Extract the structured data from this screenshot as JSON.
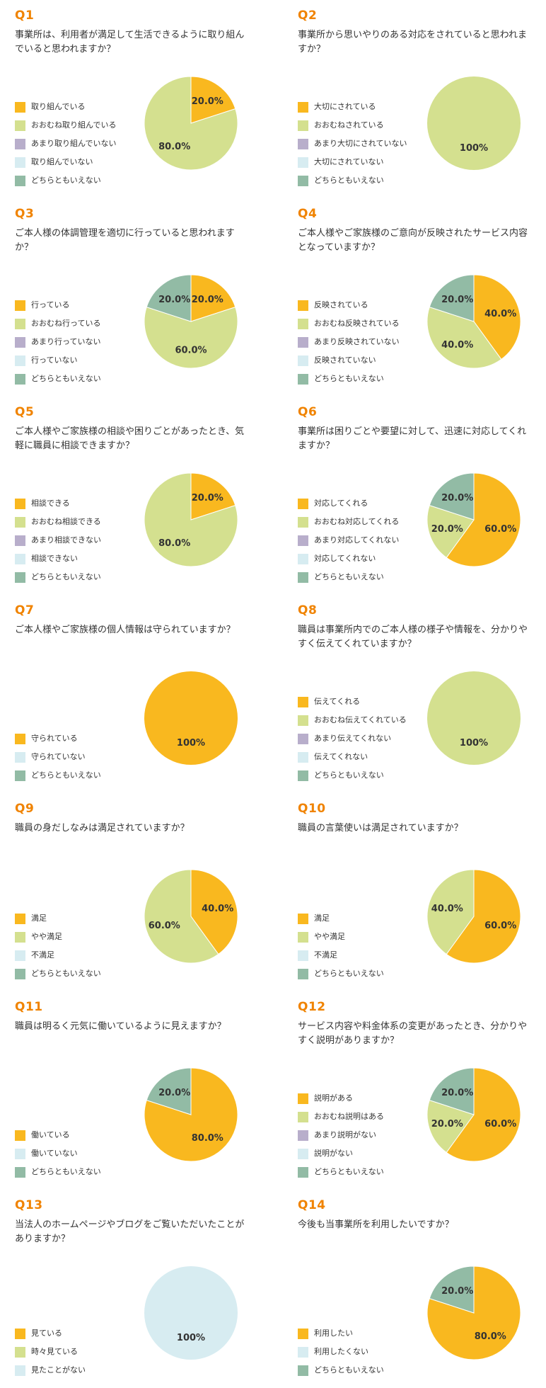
{
  "colors": {
    "orange": "#f9b81f",
    "lightgreen": "#d4e08f",
    "lavender": "#b8aecb",
    "lightblue": "#d7ecf1",
    "teal": "#92bba5"
  },
  "chart_data": [
    {
      "type": "pie",
      "qnum": "Q1",
      "title": "事業所は、利用者が満足して生活できるように取り組んでいると思われますか？",
      "categories": [
        "取り組んでいる",
        "おおむね取り組んでいる",
        "あまり取り組んでいない",
        "取り組んでいない",
        "どちらともいえない"
      ],
      "colors": [
        "#f9b81f",
        "#d4e08f",
        "#b8aecb",
        "#d7ecf1",
        "#92bba5"
      ],
      "values": [
        20.0,
        80.0,
        0,
        0,
        0
      ],
      "labels": [
        "20.0%",
        "80.0%",
        "",
        "",
        ""
      ]
    },
    {
      "type": "pie",
      "qnum": "Q2",
      "title": "事業所から思いやりのある対応をされていると思われますか？",
      "categories": [
        "大切にされている",
        "おおむねされている",
        "あまり大切にされていない",
        "大切にされていない",
        "どちらともいえない"
      ],
      "colors": [
        "#f9b81f",
        "#d4e08f",
        "#b8aecb",
        "#d7ecf1",
        "#92bba5"
      ],
      "values": [
        0,
        100,
        0,
        0,
        0
      ],
      "labels": [
        "",
        "100%",
        "",
        "",
        ""
      ]
    },
    {
      "type": "pie",
      "qnum": "Q3",
      "title": "ご本人様の体調管理を適切に行っていると思われますか？",
      "categories": [
        "行っている",
        "おおむね行っている",
        "あまり行っていない",
        "行っていない",
        "どちらともいえない"
      ],
      "colors": [
        "#f9b81f",
        "#d4e08f",
        "#b8aecb",
        "#d7ecf1",
        "#92bba5"
      ],
      "values": [
        20.0,
        60.0,
        0,
        0,
        20.0
      ],
      "labels": [
        "20.0%",
        "60.0%",
        "",
        "",
        "20.0%"
      ]
    },
    {
      "type": "pie",
      "qnum": "Q4",
      "title": "ご本人様やご家族様のご意向が反映されたサービス内容となっていますか？",
      "categories": [
        "反映されている",
        "おおむね反映されている",
        "あまり反映されていない",
        "反映されていない",
        "どちらともいえない"
      ],
      "colors": [
        "#f9b81f",
        "#d4e08f",
        "#b8aecb",
        "#d7ecf1",
        "#92bba5"
      ],
      "values": [
        40.0,
        40.0,
        0,
        0,
        20.0
      ],
      "labels": [
        "40.0%",
        "40.0%",
        "",
        "",
        "20.0%"
      ]
    },
    {
      "type": "pie",
      "qnum": "Q5",
      "title": "ご本人様やご家族様の相談や困りごとがあったとき、気軽に職員に相談できますか？",
      "categories": [
        "相談できる",
        "おおむね相談できる",
        "あまり相談できない",
        "相談できない",
        "どちらともいえない"
      ],
      "colors": [
        "#f9b81f",
        "#d4e08f",
        "#b8aecb",
        "#d7ecf1",
        "#92bba5"
      ],
      "values": [
        20.0,
        80.0,
        0,
        0,
        0
      ],
      "labels": [
        "20.0%",
        "80.0%",
        "",
        "",
        ""
      ]
    },
    {
      "type": "pie",
      "qnum": "Q6",
      "title": "事業所は困りごとや要望に対して、迅速に対応してくれますか？",
      "categories": [
        "対応してくれる",
        "おおむね対応してくれる",
        "あまり対応してくれない",
        "対応してくれない",
        "どちらともいえない"
      ],
      "colors": [
        "#f9b81f",
        "#d4e08f",
        "#b8aecb",
        "#d7ecf1",
        "#92bba5"
      ],
      "values": [
        60.0,
        20.0,
        0,
        0,
        20.0
      ],
      "labels": [
        "60.0%",
        "20.0%",
        "",
        "",
        "20.0%"
      ]
    },
    {
      "type": "pie",
      "qnum": "Q7",
      "title": "ご本人様やご家族様の個人情報は守られていますか？",
      "categories": [
        "守られている",
        "守られていない",
        "どちらともいえない"
      ],
      "colors": [
        "#f9b81f",
        "#d7ecf1",
        "#92bba5"
      ],
      "values": [
        100,
        0,
        0
      ],
      "labels": [
        "100%",
        "",
        ""
      ]
    },
    {
      "type": "pie",
      "qnum": "Q8",
      "title": "職員は事業所内でのご本人様の様子や情報を、分かりやすく伝えてくれていますか？",
      "categories": [
        "伝えてくれる",
        "おおむね伝えてくれている",
        "あまり伝えてくれない",
        "伝えてくれない",
        "どちらともいえない"
      ],
      "colors": [
        "#f9b81f",
        "#d4e08f",
        "#b8aecb",
        "#d7ecf1",
        "#92bba5"
      ],
      "values": [
        0,
        100,
        0,
        0,
        0
      ],
      "labels": [
        "",
        "100%",
        "",
        "",
        ""
      ]
    },
    {
      "type": "pie",
      "qnum": "Q9",
      "title": "職員の身だしなみは満足されていますか？",
      "categories": [
        "満足",
        "やや満足",
        "不満足",
        "どちらともいえない"
      ],
      "colors": [
        "#f9b81f",
        "#d4e08f",
        "#d7ecf1",
        "#92bba5"
      ],
      "values": [
        40.0,
        60.0,
        0,
        0
      ],
      "labels": [
        "40.0%",
        "60.0%",
        "",
        ""
      ]
    },
    {
      "type": "pie",
      "qnum": "Q10",
      "title": "職員の言葉使いは満足されていますか？",
      "categories": [
        "満足",
        "やや満足",
        "不満足",
        "どちらともいえない"
      ],
      "colors": [
        "#f9b81f",
        "#d4e08f",
        "#d7ecf1",
        "#92bba5"
      ],
      "values": [
        60.0,
        40.0,
        0,
        0
      ],
      "labels": [
        "60.0%",
        "40.0%",
        "",
        ""
      ]
    },
    {
      "type": "pie",
      "qnum": "Q11",
      "title": "職員は明るく元気に働いているように見えますか？",
      "categories": [
        "働いている",
        "働いていない",
        "どちらともいえない"
      ],
      "colors": [
        "#f9b81f",
        "#d7ecf1",
        "#92bba5"
      ],
      "values": [
        80.0,
        0,
        20.0
      ],
      "labels": [
        "80.0%",
        "",
        "20.0%"
      ]
    },
    {
      "type": "pie",
      "qnum": "Q12",
      "title": "サービス内容や料金体系の変更があったとき、分かりやすく説明がありますか？",
      "categories": [
        "説明がある",
        "おおむね説明はある",
        "あまり説明がない",
        "説明がない",
        "どちらともいえない"
      ],
      "colors": [
        "#f9b81f",
        "#d4e08f",
        "#b8aecb",
        "#d7ecf1",
        "#92bba5"
      ],
      "values": [
        60.0,
        20.0,
        0,
        0,
        20.0
      ],
      "labels": [
        "60.0%",
        "20.0%",
        "",
        "",
        "20.0%"
      ]
    },
    {
      "type": "pie",
      "qnum": "Q13",
      "title": "当法人のホームページやブログをご覧いただいたことがありますか？",
      "categories": [
        "見ている",
        "時々見ている",
        "見たことがない"
      ],
      "colors": [
        "#f9b81f",
        "#d4e08f",
        "#d7ecf1"
      ],
      "values": [
        0,
        0,
        100
      ],
      "labels": [
        "",
        "",
        "100%"
      ]
    },
    {
      "type": "pie",
      "qnum": "Q14",
      "title": "今後も当事業所を利用したいですか？",
      "categories": [
        "利用したい",
        "利用したくない",
        "どちらともいえない"
      ],
      "colors": [
        "#f9b81f",
        "#d7ecf1",
        "#92bba5"
      ],
      "values": [
        80.0,
        0,
        20.0
      ],
      "labels": [
        "80.0%",
        "",
        "20.0%"
      ]
    }
  ]
}
